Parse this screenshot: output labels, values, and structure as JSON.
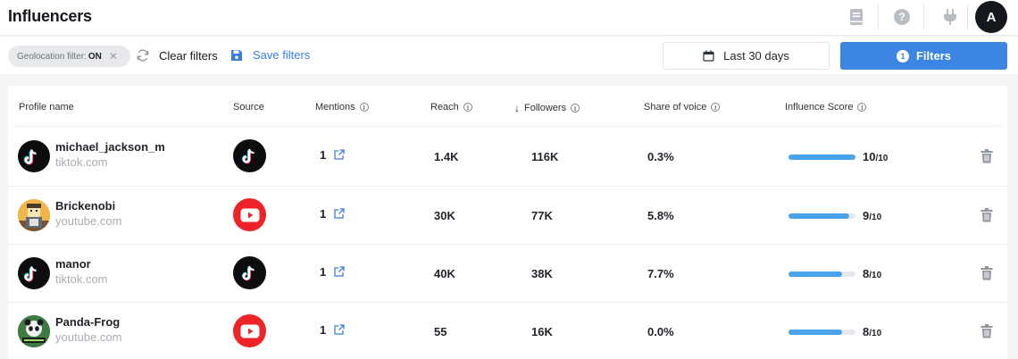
{
  "header": {
    "title": "Influencers",
    "avatar_initial": "A"
  },
  "filterbar": {
    "chip_prefix": "Geolocation filter: ",
    "chip_value": "ON",
    "clear_label": "Clear filters",
    "save_label": "Save filters",
    "date_label": "Last 30 days",
    "filters_label": "Filters",
    "filters_count": "1"
  },
  "table": {
    "columns": [
      "Profile name",
      "Source",
      "Mentions",
      "Reach",
      "Followers",
      "Share of voice",
      "Influence Score"
    ],
    "sort_indicator": "↓",
    "rows": [
      {
        "name": "michael_jackson_m",
        "domain": "tiktok.com",
        "source": "tiktok-icon",
        "mentions": "1",
        "reach": "1.4K",
        "followers": "116K",
        "share": "0.3%",
        "score": "10",
        "score_max": "/10",
        "score_fraction": 1.0
      },
      {
        "name": "Brickenobi",
        "domain": "youtube.com",
        "source": "youtube-icon",
        "mentions": "1",
        "reach": "30K",
        "followers": "77K",
        "share": "5.8%",
        "score": "9",
        "score_max": "/10",
        "score_fraction": 0.9
      },
      {
        "name": "manor",
        "domain": "tiktok.com",
        "source": "tiktok-icon",
        "mentions": "1",
        "reach": "40K",
        "followers": "38K",
        "share": "7.7%",
        "score": "8",
        "score_max": "/10",
        "score_fraction": 0.8
      },
      {
        "name": "Panda-Frog",
        "domain": "youtube.com",
        "source": "youtube-icon",
        "mentions": "1",
        "reach": "55",
        "followers": "16K",
        "share": "0.0%",
        "score": "8",
        "score_max": "/10",
        "score_fraction": 0.8
      }
    ]
  },
  "colors": {
    "accent": "#3d85e3",
    "score_bar": "#4aa4eb",
    "youtube": "#ee2328",
    "tiktok": "#0d0d0f"
  }
}
